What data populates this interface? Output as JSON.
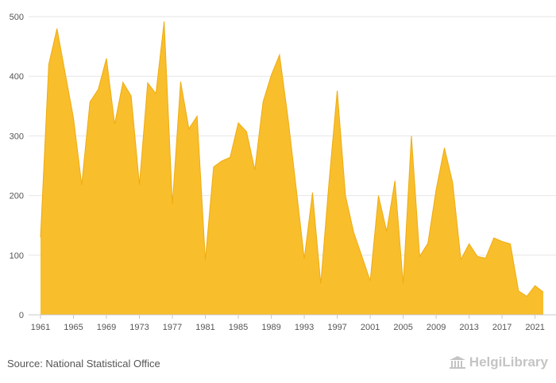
{
  "chart_data": {
    "type": "area",
    "title": "",
    "xlabel": "",
    "ylabel": "",
    "ylim": [
      0,
      500
    ],
    "y_ticks": [
      "0",
      "100",
      "200",
      "300",
      "400",
      "500"
    ],
    "x_ticks": [
      "1961",
      "1965",
      "1969",
      "1973",
      "1977",
      "1981",
      "1985",
      "1989",
      "1993",
      "1997",
      "2001",
      "2005",
      "2009",
      "2013",
      "2017",
      "2021"
    ],
    "grid": "horizontal",
    "legend": "none",
    "color": "#f9be2c",
    "stroke_color": "#eeac12",
    "x": [
      1961,
      1962,
      1963,
      1964,
      1965,
      1966,
      1967,
      1968,
      1969,
      1970,
      1971,
      1972,
      1973,
      1974,
      1975,
      1976,
      1977,
      1978,
      1979,
      1980,
      1981,
      1982,
      1983,
      1984,
      1985,
      1986,
      1987,
      1988,
      1989,
      1990,
      1991,
      1992,
      1993,
      1994,
      1995,
      1996,
      1997,
      1998,
      1999,
      2000,
      2001,
      2002,
      2003,
      2004,
      2005,
      2006,
      2007,
      2008,
      2009,
      2010,
      2011,
      2012,
      2013,
      2014,
      2015,
      2016,
      2017,
      2018,
      2019,
      2020,
      2021,
      2022
    ],
    "values": [
      130,
      420,
      480,
      405,
      330,
      218,
      357,
      378,
      430,
      320,
      390,
      367,
      218,
      389,
      371,
      492,
      185,
      391,
      312,
      333,
      92,
      248,
      258,
      264,
      322,
      307,
      243,
      357,
      402,
      436,
      333,
      215,
      94,
      205,
      52,
      222,
      376,
      200,
      138,
      98,
      57,
      200,
      140,
      225,
      52,
      300,
      98,
      120,
      210,
      280,
      222,
      93,
      119,
      98,
      95,
      129,
      123,
      119,
      40,
      31,
      49,
      38
    ]
  },
  "footer": {
    "source": "Source: National Statistical Office",
    "logo_text": "HelgiLibrary"
  }
}
